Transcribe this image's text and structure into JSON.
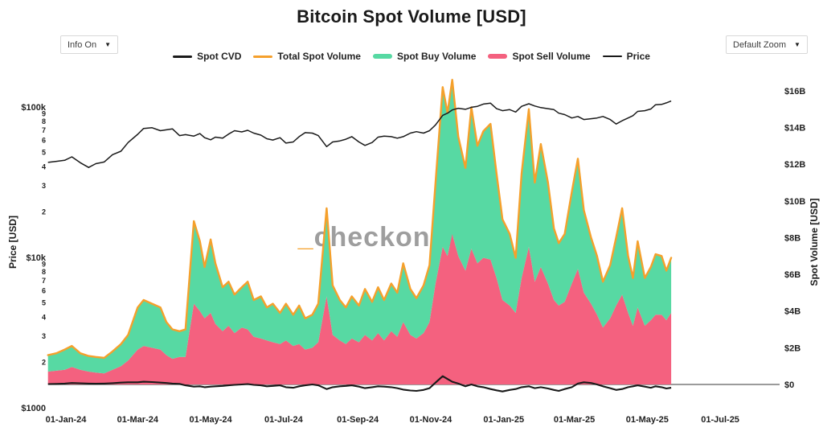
{
  "header": {
    "title": "Bitcoin Spot Volume [USD]"
  },
  "controls": {
    "info_button": {
      "label": "Info On",
      "caret": "▼"
    },
    "zoom_button": {
      "label": "Default Zoom",
      "caret": "▼"
    }
  },
  "legend": [
    {
      "label": "Spot CVD",
      "color": "#1a1a1a",
      "swatch": "med"
    },
    {
      "label": "Total Spot Volume",
      "color": "#f5a02c",
      "swatch": "med"
    },
    {
      "label": "Spot Buy Volume",
      "color": "#57d9a3",
      "swatch": "thick"
    },
    {
      "label": "Spot Sell Volume",
      "color": "#f4617f",
      "swatch": "thick"
    },
    {
      "label": "Price",
      "color": "#1a1a1a",
      "swatch": "thin"
    }
  ],
  "watermark": {
    "prefix": "_",
    "text": "checkonchain",
    "prefix_color": "#f5a02c",
    "text_color": "#9e9e9e"
  },
  "axes": {
    "left": {
      "title": "Price [USD]",
      "scale": "log",
      "major_ticks": [
        {
          "label": "$100k",
          "value": 100000
        },
        {
          "label": "$10k",
          "value": 10000
        },
        {
          "label": "$1000",
          "value": 1000
        }
      ],
      "minor_digits": [
        9,
        8,
        7,
        6,
        5,
        4,
        3,
        2
      ]
    },
    "right": {
      "title": "Spot Volume [USD]",
      "scale": "linear",
      "ticks": [
        {
          "label": "$0",
          "value": 0
        },
        {
          "label": "$2B",
          "value": 2
        },
        {
          "label": "$4B",
          "value": 4
        },
        {
          "label": "$6B",
          "value": 6
        },
        {
          "label": "$8B",
          "value": 8
        },
        {
          "label": "$10B",
          "value": 10
        },
        {
          "label": "$12B",
          "value": 12
        },
        {
          "label": "$14B",
          "value": 14
        },
        {
          "label": "$16B",
          "value": 16
        }
      ]
    },
    "x": {
      "ticks": [
        {
          "label": "01-Jan-24",
          "date": "2024-01-01"
        },
        {
          "label": "01-Mar-24",
          "date": "2024-03-01"
        },
        {
          "label": "01-May-24",
          "date": "2024-05-01"
        },
        {
          "label": "01-Jul-24",
          "date": "2024-07-01"
        },
        {
          "label": "01-Sep-24",
          "date": "2024-09-01"
        },
        {
          "label": "01-Nov-24",
          "date": "2024-11-01"
        },
        {
          "label": "01-Jan-25",
          "date": "2025-01-01"
        },
        {
          "label": "01-Mar-25",
          "date": "2025-03-01"
        },
        {
          "label": "01-May-25",
          "date": "2025-05-01"
        },
        {
          "label": "01-Jul-25",
          "date": "2025-07-01"
        }
      ]
    }
  },
  "chart_data": {
    "type": "area",
    "title": "Bitcoin Spot Volume [USD]",
    "ylim_right_billusd": [
      0,
      16
    ],
    "ylim_left_usd": [
      1000,
      100000
    ],
    "grid": "zero-line-only",
    "legend_position": "top-center",
    "x_dates": [
      "2023-12-17",
      "2023-12-24",
      "2023-12-31",
      "2024-01-06",
      "2024-01-13",
      "2024-01-20",
      "2024-01-26",
      "2024-02-02",
      "2024-02-09",
      "2024-02-16",
      "2024-02-22",
      "2024-03-01",
      "2024-03-06",
      "2024-03-13",
      "2024-03-20",
      "2024-03-25",
      "2024-03-30",
      "2024-04-05",
      "2024-04-10",
      "2024-04-17",
      "2024-04-22",
      "2024-04-26",
      "2024-05-01",
      "2024-05-05",
      "2024-05-11",
      "2024-05-16",
      "2024-05-21",
      "2024-05-27",
      "2024-06-01",
      "2024-06-06",
      "2024-06-12",
      "2024-06-17",
      "2024-06-22",
      "2024-06-28",
      "2024-07-03",
      "2024-07-09",
      "2024-07-14",
      "2024-07-19",
      "2024-07-25",
      "2024-07-30",
      "2024-08-06",
      "2024-08-11",
      "2024-08-17",
      "2024-08-22",
      "2024-08-27",
      "2024-09-02",
      "2024-09-07",
      "2024-09-13",
      "2024-09-18",
      "2024-09-23",
      "2024-09-29",
      "2024-10-04",
      "2024-10-09",
      "2024-10-15",
      "2024-10-20",
      "2024-10-26",
      "2024-10-31",
      "2024-11-05",
      "2024-11-11",
      "2024-11-15",
      "2024-11-19",
      "2024-11-24",
      "2024-11-30",
      "2024-12-05",
      "2024-12-10",
      "2024-12-15",
      "2024-12-21",
      "2024-12-26",
      "2024-12-31",
      "2025-01-06",
      "2025-01-11",
      "2025-01-16",
      "2025-01-22",
      "2025-01-27",
      "2025-02-01",
      "2025-02-07",
      "2025-02-12",
      "2025-02-16",
      "2025-02-21",
      "2025-02-27",
      "2025-03-04",
      "2025-03-09",
      "2025-03-15",
      "2025-03-20",
      "2025-03-25",
      "2025-03-31",
      "2025-04-05",
      "2025-04-10",
      "2025-04-15",
      "2025-04-19",
      "2025-04-23",
      "2025-04-29",
      "2025-05-04",
      "2025-05-08",
      "2025-05-13",
      "2025-05-17",
      "2025-05-21"
    ],
    "series": [
      {
        "name": "Spot Sell Volume",
        "type": "area",
        "axis": "right",
        "unit": "billion USD",
        "color": "#f4617f",
        "values": [
          0.7,
          0.75,
          0.8,
          0.95,
          0.8,
          0.7,
          0.65,
          0.6,
          0.8,
          1.0,
          1.3,
          1.9,
          2.1,
          2.0,
          1.9,
          1.6,
          1.4,
          1.5,
          1.5,
          4.4,
          4.0,
          3.6,
          3.9,
          3.3,
          2.9,
          3.2,
          2.8,
          3.1,
          3.0,
          2.6,
          2.5,
          2.4,
          2.3,
          2.2,
          2.4,
          2.1,
          2.2,
          1.9,
          2.0,
          2.3,
          4.8,
          2.7,
          2.4,
          2.2,
          2.5,
          2.3,
          2.7,
          2.4,
          2.8,
          2.4,
          2.9,
          2.6,
          3.4,
          2.7,
          2.5,
          2.8,
          3.4,
          5.5,
          7.5,
          7.0,
          8.2,
          7.0,
          6.2,
          7.4,
          6.6,
          6.9,
          6.8,
          5.8,
          4.6,
          4.3,
          3.9,
          5.8,
          7.5,
          5.6,
          6.4,
          5.5,
          4.6,
          4.3,
          4.5,
          5.5,
          6.3,
          5.0,
          4.4,
          3.8,
          3.1,
          3.6,
          4.3,
          4.9,
          3.9,
          3.2,
          4.2,
          3.2,
          3.5,
          3.8,
          3.8,
          3.5,
          3.9
        ]
      },
      {
        "name": "Spot Buy Volume",
        "type": "area-stacked",
        "axis": "right",
        "unit": "billion USD",
        "color": "#57d9a3",
        "values": [
          0.9,
          0.95,
          1.1,
          1.15,
          0.9,
          0.85,
          0.85,
          0.85,
          1.0,
          1.2,
          1.4,
          2.3,
          2.5,
          2.4,
          2.3,
          1.8,
          1.6,
          1.4,
          1.5,
          4.5,
          3.8,
          2.8,
          4.0,
          3.3,
          2.4,
          2.4,
          2.1,
          2.2,
          2.6,
          2.0,
          2.3,
          1.8,
          2.1,
          1.7,
          2.0,
          1.7,
          2.1,
          1.7,
          1.8,
          2.1,
          4.8,
          2.7,
          2.2,
          2.0,
          2.3,
          2.0,
          2.5,
          2.1,
          2.5,
          2.2,
          2.6,
          2.4,
          3.2,
          2.5,
          2.2,
          2.6,
          3.1,
          5.5,
          8.7,
          7.8,
          8.4,
          6.5,
          5.6,
          7.7,
          6.4,
          6.9,
          7.4,
          5.7,
          4.4,
          3.9,
          3.0,
          5.7,
          7.5,
          5.4,
          6.7,
          5.5,
          3.9,
          3.4,
          3.7,
          5.0,
          6.0,
          4.5,
          3.6,
          3.2,
          2.5,
          2.9,
          3.7,
          4.7,
          3.1,
          2.6,
          3.6,
          2.6,
          2.9,
          3.3,
          3.2,
          2.7,
          3.0
        ]
      },
      {
        "name": "Total Spot Volume",
        "type": "line",
        "axis": "right",
        "unit": "billion USD",
        "color": "#f5a02c",
        "values": [
          1.6,
          1.7,
          1.9,
          2.1,
          1.7,
          1.55,
          1.5,
          1.45,
          1.8,
          2.2,
          2.7,
          4.2,
          4.6,
          4.4,
          4.2,
          3.4,
          3.0,
          2.9,
          3.0,
          8.9,
          7.8,
          6.4,
          7.9,
          6.6,
          5.3,
          5.6,
          4.9,
          5.3,
          5.6,
          4.6,
          4.8,
          4.2,
          4.4,
          3.9,
          4.4,
          3.8,
          4.3,
          3.6,
          3.8,
          4.4,
          9.6,
          5.4,
          4.6,
          4.2,
          4.8,
          4.3,
          5.2,
          4.5,
          5.3,
          4.6,
          5.5,
          5.0,
          6.6,
          5.2,
          4.7,
          5.4,
          6.5,
          11.0,
          16.2,
          14.8,
          16.6,
          13.5,
          11.8,
          15.1,
          13.0,
          13.8,
          14.2,
          11.5,
          9.0,
          8.2,
          6.9,
          11.5,
          15.0,
          11.0,
          13.1,
          11.0,
          8.5,
          7.7,
          8.2,
          10.5,
          12.3,
          9.5,
          8.0,
          7.0,
          5.6,
          6.5,
          8.0,
          9.6,
          7.0,
          5.8,
          7.8,
          5.8,
          6.4,
          7.1,
          7.0,
          6.2,
          6.9
        ]
      },
      {
        "name": "Spot CVD",
        "type": "line",
        "axis": "right",
        "unit": "billion USD",
        "color": "#1a1a1a",
        "values": [
          0.02,
          0.03,
          0.05,
          0.08,
          0.06,
          0.05,
          0.04,
          0.05,
          0.07,
          0.1,
          0.12,
          0.12,
          0.15,
          0.13,
          0.1,
          0.08,
          0.05,
          0.03,
          -0.05,
          -0.12,
          -0.1,
          -0.15,
          -0.12,
          -0.1,
          -0.08,
          -0.05,
          -0.02,
          0.0,
          0.02,
          -0.02,
          -0.05,
          -0.1,
          -0.08,
          -0.05,
          -0.15,
          -0.18,
          -0.1,
          -0.05,
          0.0,
          -0.05,
          -0.25,
          -0.15,
          -0.1,
          -0.08,
          -0.05,
          -0.12,
          -0.2,
          -0.15,
          -0.1,
          -0.12,
          -0.15,
          -0.2,
          -0.28,
          -0.33,
          -0.35,
          -0.3,
          -0.2,
          0.1,
          0.45,
          0.3,
          0.15,
          0.05,
          -0.1,
          0.0,
          -0.1,
          -0.15,
          -0.25,
          -0.32,
          -0.38,
          -0.3,
          -0.25,
          -0.15,
          -0.1,
          -0.2,
          -0.15,
          -0.22,
          -0.3,
          -0.35,
          -0.25,
          -0.15,
          0.05,
          0.12,
          0.08,
          0.0,
          -0.1,
          -0.2,
          -0.3,
          -0.25,
          -0.15,
          -0.1,
          -0.05,
          -0.12,
          -0.18,
          -0.1,
          -0.15,
          -0.22,
          -0.18
        ]
      },
      {
        "name": "Price",
        "type": "line",
        "axis": "left",
        "unit": "thousand USD",
        "color": "#1a1a1a",
        "values": [
          42.8,
          43.5,
          44.2,
          46.6,
          42.6,
          39.6,
          42.0,
          43.1,
          48.2,
          50.8,
          58.0,
          65.8,
          72.0,
          72.8,
          69.5,
          70.5,
          71.5,
          64.5,
          65.5,
          64.0,
          66.5,
          62.5,
          60.5,
          63.0,
          62.0,
          66.0,
          69.5,
          68.3,
          70.0,
          67.0,
          65.0,
          61.5,
          60.3,
          62.5,
          57.5,
          58.5,
          63.5,
          67.5,
          67.0,
          64.5,
          54.5,
          58.5,
          59.5,
          61.0,
          63.5,
          58.5,
          55.5,
          58.0,
          63.0,
          64.0,
          63.5,
          62.0,
          63.5,
          67.0,
          68.5,
          67.0,
          69.5,
          76.0,
          88.0,
          91.0,
          95.5,
          98.0,
          96.5,
          99.5,
          101.0,
          104.5,
          106.0,
          97.5,
          94.5,
          96.0,
          92.5,
          101.0,
          105.0,
          101.5,
          99.0,
          97.5,
          96.0,
          91.0,
          89.0,
          84.5,
          86.5,
          82.5,
          83.5,
          84.5,
          86.5,
          82.5,
          77.0,
          81.0,
          84.5,
          87.5,
          93.5,
          94.5,
          97.0,
          103.5,
          104.0,
          106.5,
          109.5
        ]
      }
    ]
  }
}
